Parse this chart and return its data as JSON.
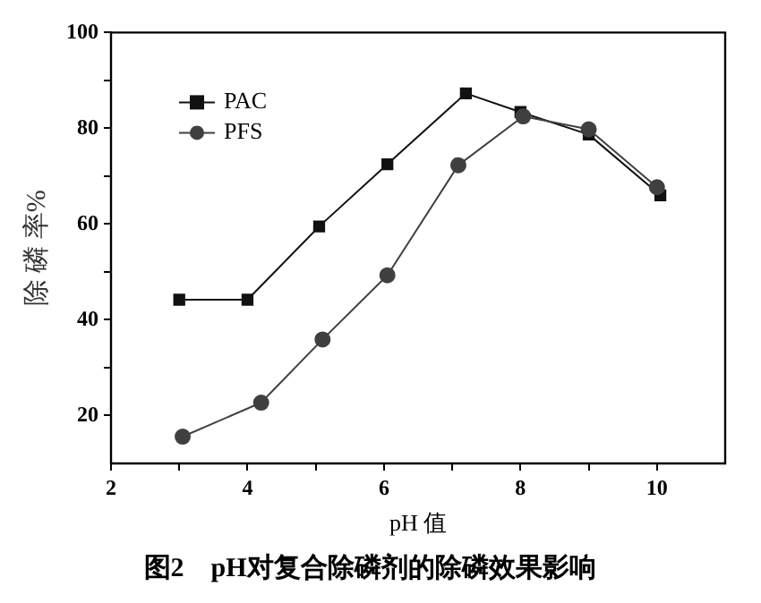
{
  "chart_data": {
    "type": "line",
    "title": "图2　pH对复合除磷剂的除磷效果影响",
    "xlabel": "pH 值",
    "ylabel": "除 磷 率%",
    "xlim": [
      2,
      11
    ],
    "xticks": [
      2,
      {
        "value": 3,
        "label": null
      },
      4,
      {
        "value": 5,
        "label": null
      },
      6,
      {
        "value": 7,
        "label": null
      },
      8,
      {
        "value": 9,
        "label": null
      },
      10
    ],
    "ylim": [
      10,
      100
    ],
    "yticks": [
      20,
      {
        "value": 30,
        "label": null
      },
      40,
      {
        "value": 50,
        "label": null
      },
      60,
      {
        "value": 70,
        "label": null
      },
      80,
      {
        "value": 90,
        "label": null
      },
      100
    ],
    "grid": false,
    "legend": "top left",
    "line_style": "solid",
    "series": [
      {
        "name": "PAC",
        "color": "#111111",
        "marker": "square",
        "x": [
          3.0,
          4.0,
          5.05,
          6.05,
          7.2,
          8.0,
          9.0,
          10.05
        ],
        "values": [
          44.2,
          44.2,
          59.5,
          72.5,
          87.3,
          83.4,
          78.7,
          66.0
        ]
      },
      {
        "name": "PFS",
        "color": "#404040",
        "marker": "circle",
        "x": [
          3.05,
          4.2,
          5.1,
          6.05,
          7.09,
          8.04,
          9.0,
          10.0
        ],
        "values": [
          15.6,
          22.7,
          35.9,
          49.3,
          72.3,
          82.5,
          79.8,
          67.7
        ]
      }
    ]
  }
}
